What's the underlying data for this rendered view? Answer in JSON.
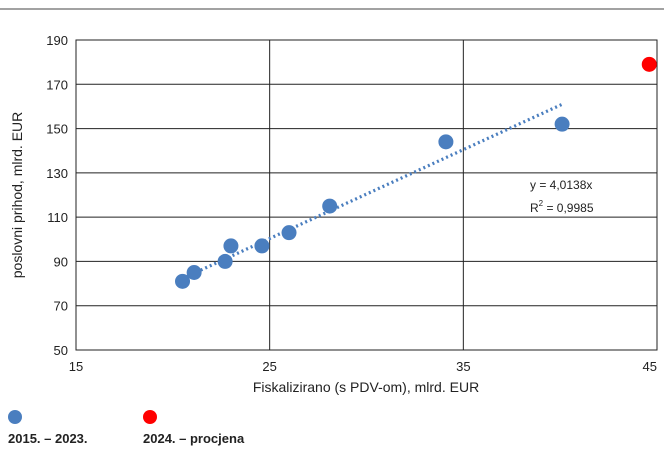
{
  "chart_data": {
    "type": "scatter",
    "xlabel": "Fiskalizirano (s PDV-om), mlrd. EUR",
    "ylabel": "poslovni prihod, mlrd. EUR",
    "xlim": [
      15,
      45
    ],
    "ylim": [
      50,
      190
    ],
    "x_ticks": [
      "15",
      "25",
      "35",
      "45"
    ],
    "y_ticks": [
      "50",
      "70",
      "90",
      "110",
      "130",
      "150",
      "170",
      "190"
    ],
    "grid": true,
    "legend_position": "bottom-left",
    "series": [
      {
        "name": "2015. – 2023.",
        "color": "#4a7ebf",
        "points": [
          {
            "x": 20.5,
            "y": 81
          },
          {
            "x": 21.1,
            "y": 85
          },
          {
            "x": 22.7,
            "y": 90
          },
          {
            "x": 23.0,
            "y": 97
          },
          {
            "x": 24.6,
            "y": 97
          },
          {
            "x": 26.0,
            "y": 103
          },
          {
            "x": 28.1,
            "y": 115
          },
          {
            "x": 34.1,
            "y": 144
          },
          {
            "x": 40.1,
            "y": 152
          }
        ]
      },
      {
        "name": "2024. – procjena",
        "color": "#ff0000",
        "points": [
          {
            "x": 44.6,
            "y": 179
          }
        ]
      }
    ],
    "trendline": {
      "type": "linear",
      "slope": 4.0138,
      "x_range": [
        20.5,
        40.1
      ],
      "color": "#4a7ebf",
      "equation": "y = 4,0138x",
      "r2_label": "R",
      "r2_exp": "2",
      "r2_value": " = 0,9985"
    }
  }
}
